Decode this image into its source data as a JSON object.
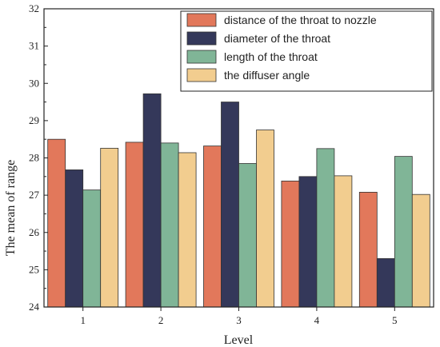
{
  "chart_data": {
    "type": "bar",
    "xlabel": "Level",
    "ylabel": "The mean of  range",
    "categories": [
      "1",
      "2",
      "3",
      "4",
      "5"
    ],
    "ylim": [
      24,
      32
    ],
    "yticks": [
      "24",
      "25",
      "26",
      "27",
      "28",
      "29",
      "30",
      "31",
      "32"
    ],
    "grid": false,
    "legend_position": "top-right",
    "series": [
      {
        "name": "distance of the throat to nozzle",
        "color": "#e2785b",
        "values": [
          28.5,
          28.42,
          28.32,
          27.38,
          27.08
        ]
      },
      {
        "name": "diameter of the throat",
        "color": "#34385a",
        "values": [
          27.68,
          29.72,
          29.5,
          27.5,
          25.3
        ]
      },
      {
        "name": "length of the throat",
        "color": "#80b597",
        "values": [
          27.14,
          28.4,
          27.85,
          28.25,
          28.04
        ]
      },
      {
        "name": "the diffuser angle",
        "color": "#f2cd8f",
        "values": [
          28.26,
          28.14,
          28.75,
          27.52,
          27.02
        ]
      }
    ]
  }
}
